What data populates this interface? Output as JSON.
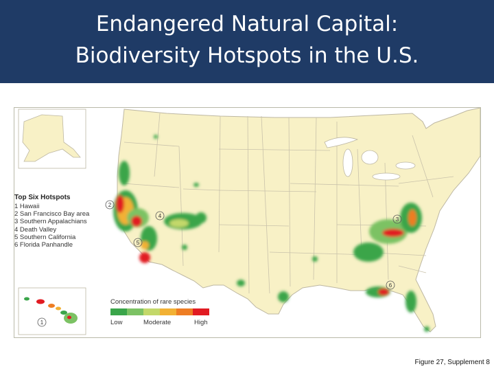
{
  "slide": {
    "title_line1": "Endangered Natural Capital:",
    "title_line2": "Biodiversity Hotspots in the U.S.",
    "caption": "Figure 27, Supplement 8"
  },
  "map": {
    "legend_title": "Top Six Hotspots",
    "hotspots": [
      {
        "num": "1",
        "label": "1 Hawaii",
        "marker": "①"
      },
      {
        "num": "2",
        "label": "2 San Francisco Bay area",
        "marker": "②"
      },
      {
        "num": "3",
        "label": "3 Southern Appalachians",
        "marker": "③"
      },
      {
        "num": "4",
        "label": "4 Death Valley",
        "marker": "④"
      },
      {
        "num": "5",
        "label": "5 Southern California",
        "marker": "⑤"
      },
      {
        "num": "6",
        "label": "6 Florida Panhandle",
        "marker": "⑥"
      }
    ],
    "scale_title": "Concentration of rare species",
    "scale_labels": {
      "low": "Low",
      "moderate": "Moderate",
      "high": "High"
    },
    "scale_colors": [
      "#3aa54a",
      "#7cc264",
      "#c3d86a",
      "#f2b134",
      "#ee7d23",
      "#e11b22"
    ],
    "land_color": "#f8f1c6",
    "water_color": "#ffffff",
    "border_color": "#bdb7a2"
  }
}
